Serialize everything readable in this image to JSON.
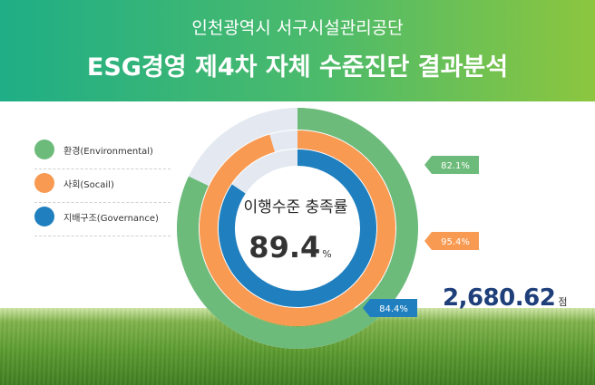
{
  "header": {
    "subtitle": "인천광역시 서구시설관리공단",
    "title": "ESG경영 제4차 자체 수준진단 결과분석"
  },
  "center": {
    "label": "이행수준 충족률",
    "value": "89.4",
    "unit": "%"
  },
  "total": {
    "value": "2,680.62",
    "unit": "점"
  },
  "colors": {
    "environmental": "#6dbb7b",
    "social": "#f89a52",
    "governance": "#1f7fbf",
    "track": "#e4e9f1"
  },
  "chart_data": {
    "type": "radial-bar",
    "center_label": "이행수준 충족률",
    "center_value": 89.4,
    "series": [
      {
        "name": "환경(Environmental)",
        "value": 82.1,
        "label": "82.1%"
      },
      {
        "name": "사회(Socail)",
        "value": 95.4,
        "label": "95.4%"
      },
      {
        "name": "지배구조(Governance)",
        "value": 84.4,
        "label": "84.4%"
      }
    ],
    "legend": [
      {
        "label": "환경(Environmental)"
      },
      {
        "label": "사회(Socail)"
      },
      {
        "label": "지배구조(Governance)"
      }
    ]
  }
}
